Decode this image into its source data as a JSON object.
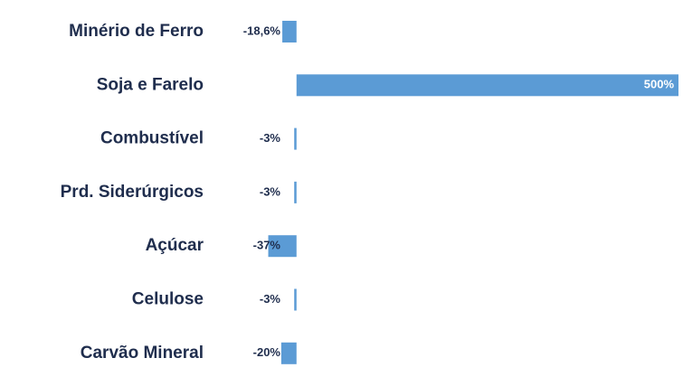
{
  "chart_data": {
    "type": "barh",
    "categories": [
      "Minério de Ferro",
      "Soja e Farelo",
      "Combustível",
      "Prd. Siderúrgicos",
      "Açúcar",
      "Celulose",
      "Carvão Mineral"
    ],
    "values": [
      -18.6,
      500,
      -3,
      -3,
      -37,
      -3,
      -20
    ],
    "value_labels": [
      "-18,6%",
      "500%",
      "-3%",
      "-3%",
      "-37%",
      "-3%",
      "-20%"
    ],
    "color": "#5b9bd5",
    "xlim": [
      -40,
      500
    ]
  }
}
